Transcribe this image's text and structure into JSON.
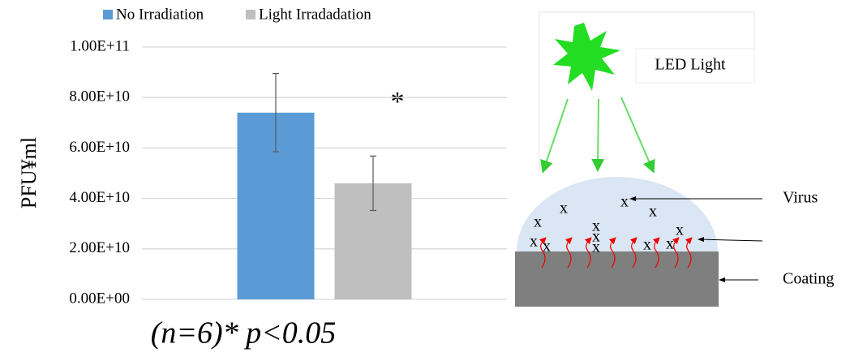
{
  "chart_data": {
    "type": "bar",
    "categories": [
      null
    ],
    "series": [
      {
        "name": "No Irradiation",
        "color": "#5b9bd5",
        "values": [
          74000000000.0
        ],
        "error": [
          15500000000.0
        ]
      },
      {
        "name": "Light Irradadation",
        "color": "#bfbfbf",
        "values": [
          46000000000.0
        ],
        "error": [
          10800000000.0
        ]
      }
    ],
    "ylabel": "PFU¥ml",
    "ylim": [
      0,
      100000000000.0
    ],
    "yticks": [
      {
        "value": 0,
        "label": "0.00E+00"
      },
      {
        "value": 20000000000.0,
        "label": "2.00E+10"
      },
      {
        "value": 40000000000.0,
        "label": "4.00E+10"
      },
      {
        "value": 60000000000.0,
        "label": "6.00E+10"
      },
      {
        "value": 80000000000.0,
        "label": "8.00E+10"
      },
      {
        "value": 100000000000.0,
        "label": "1.00E+11"
      }
    ],
    "grid": true,
    "legend": "top",
    "annotation": "*",
    "footnote": "(n=6)* p<0.05"
  },
  "diagram": {
    "light_label": "LED Light",
    "virus_label": "Virus",
    "coating_label": "Coating",
    "virus_symbol": "x"
  }
}
